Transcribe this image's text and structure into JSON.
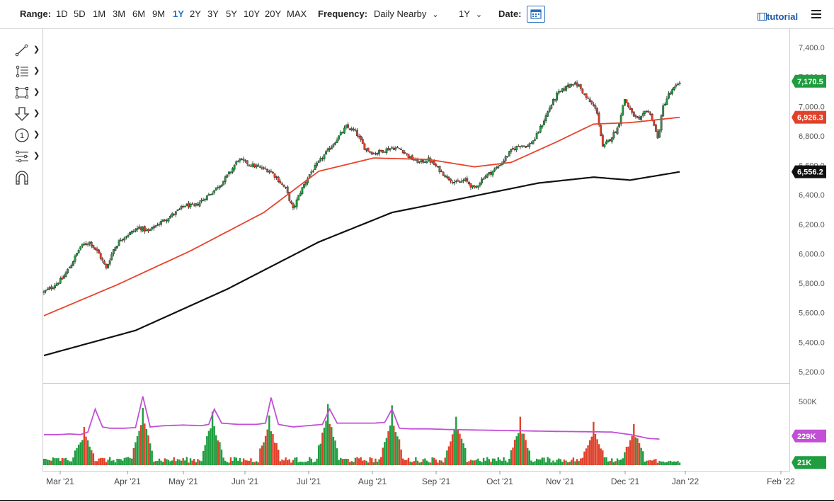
{
  "toolbar": {
    "range_label": "Range:",
    "ranges": [
      "1D",
      "5D",
      "1M",
      "3M",
      "6M",
      "9M",
      "1Y",
      "2Y",
      "3Y",
      "5Y",
      "10Y",
      "20Y",
      "MAX"
    ],
    "active_range": "1Y",
    "frequency_label": "Frequency:",
    "frequency_value": "Daily Nearby",
    "period_value": "1Y",
    "date_label": "Date:",
    "tutorial_label": "tutorial"
  },
  "drawing_tools": [
    "line-tool-icon",
    "text-list-tool-icon",
    "rectangle-tool-icon",
    "arrow-tool-icon",
    "number-marker-tool-icon",
    "fibonacci-tool-icon",
    "magnet-tool-icon"
  ],
  "colors": {
    "up": "#1f9d3f",
    "down": "#e0412a",
    "ma50": "#e8432b",
    "ma200": "#111111",
    "vol_avg": "#c24fd6",
    "badge_last": "#1f9d3f",
    "badge_ma50": "#e0412a",
    "badge_ma200": "#111111"
  },
  "chart_data": [
    {
      "type": "candlestick",
      "panel": "price",
      "x_axis_ticks": [
        "Mar '21",
        "Apr '21",
        "May '21",
        "Jun '21",
        "Jul '21",
        "Aug '21",
        "Sep '21",
        "Oct '21",
        "Nov '21",
        "Dec '21",
        "Jan '22",
        "Feb '22"
      ],
      "ylim": [
        5150,
        7450
      ],
      "y_ticks": [
        "7,400.0",
        "7,200.0",
        "7,000.0",
        "6,800.0",
        "6,600.0",
        "6,400.0",
        "6,200.0",
        "6,000.0",
        "5,800.0",
        "5,600.0",
        "5,400.0",
        "5,200.0"
      ],
      "y_tick_values": [
        7400,
        7200,
        7000,
        6800,
        6600,
        6400,
        6200,
        6000,
        5800,
        5600,
        5400,
        5200
      ],
      "close_path": [
        [
          0,
          5740
        ],
        [
          5,
          5780
        ],
        [
          10,
          5830
        ],
        [
          15,
          5930
        ],
        [
          20,
          6050
        ],
        [
          25,
          6080
        ],
        [
          30,
          6000
        ],
        [
          34,
          5900
        ],
        [
          38,
          6030
        ],
        [
          42,
          6100
        ],
        [
          47,
          6140
        ],
        [
          52,
          6180
        ],
        [
          57,
          6150
        ],
        [
          62,
          6200
        ],
        [
          67,
          6240
        ],
        [
          72,
          6280
        ],
        [
          77,
          6330
        ],
        [
          82,
          6320
        ],
        [
          87,
          6370
        ],
        [
          92,
          6420
        ],
        [
          97,
          6480
        ],
        [
          102,
          6560
        ],
        [
          106,
          6640
        ],
        [
          110,
          6620
        ],
        [
          114,
          6600
        ],
        [
          119,
          6580
        ],
        [
          124,
          6560
        ],
        [
          128,
          6500
        ],
        [
          132,
          6440
        ],
        [
          136,
          6300
        ],
        [
          140,
          6420
        ],
        [
          145,
          6540
        ],
        [
          150,
          6620
        ],
        [
          155,
          6700
        ],
        [
          160,
          6780
        ],
        [
          165,
          6860
        ],
        [
          170,
          6830
        ],
        [
          175,
          6720
        ],
        [
          180,
          6680
        ],
        [
          185,
          6700
        ],
        [
          190,
          6720
        ],
        [
          195,
          6710
        ],
        [
          200,
          6650
        ],
        [
          205,
          6620
        ],
        [
          210,
          6640
        ],
        [
          215,
          6580
        ],
        [
          220,
          6520
        ],
        [
          225,
          6480
        ],
        [
          230,
          6500
        ],
        [
          235,
          6440
        ],
        [
          240,
          6520
        ],
        [
          245,
          6560
        ],
        [
          250,
          6620
        ],
        [
          255,
          6700
        ],
        [
          260,
          6740
        ],
        [
          264,
          6730
        ],
        [
          268,
          6780
        ],
        [
          272,
          6880
        ],
        [
          276,
          6990
        ],
        [
          280,
          7080
        ],
        [
          284,
          7120
        ],
        [
          288,
          7160
        ],
        [
          292,
          7140
        ],
        [
          296,
          7060
        ],
        [
          300,
          7000
        ],
        [
          302,
          6960
        ],
        [
          305,
          6720
        ],
        [
          309,
          6780
        ],
        [
          313,
          6850
        ],
        [
          317,
          7050
        ],
        [
          321,
          6950
        ],
        [
          325,
          6900
        ],
        [
          329,
          6980
        ],
        [
          332,
          6920
        ],
        [
          335,
          6780
        ],
        [
          338,
          7000
        ],
        [
          341,
          7080
        ],
        [
          344,
          7120
        ],
        [
          347,
          7170
        ]
      ],
      "series": [
        {
          "name": "",
          "points": [
            [
              0,
              5580
            ],
            [
              40,
              5790
            ],
            [
              80,
              6020
            ],
            [
              120,
              6280
            ],
            [
              150,
              6560
            ],
            [
              180,
              6650
            ],
            [
              210,
              6640
            ],
            [
              235,
              6590
            ],
            [
              255,
              6620
            ],
            [
              280,
              6760
            ],
            [
              300,
              6880
            ],
            [
              320,
              6890
            ],
            [
              347,
              6926
            ]
          ]
        },
        {
          "name": "",
          "points": [
            [
              0,
              5310
            ],
            [
              50,
              5480
            ],
            [
              100,
              5760
            ],
            [
              150,
              6080
            ],
            [
              190,
              6280
            ],
            [
              230,
              6380
            ],
            [
              270,
              6480
            ],
            [
              300,
              6520
            ],
            [
              320,
              6500
            ],
            [
              347,
              6556
            ]
          ]
        }
      ],
      "price_badges": [
        "7,170.5",
        "6,926.3",
        "6,556.2"
      ],
      "price_badge_values": [
        7170.5,
        6926.3,
        6556.2
      ]
    },
    {
      "type": "bar",
      "panel": "volume",
      "ylim": [
        0,
        560
      ],
      "y_ticks": [
        "500K"
      ],
      "y_tick_values": [
        500
      ],
      "badges": [
        "229K",
        "21K"
      ],
      "badge_values": [
        229,
        21
      ],
      "spikes": [
        [
          22,
          300
        ],
        [
          54,
          450
        ],
        [
          92,
          420
        ],
        [
          123,
          390
        ],
        [
          155,
          480
        ],
        [
          190,
          470
        ],
        [
          225,
          380
        ],
        [
          260,
          380
        ],
        [
          300,
          340
        ],
        [
          322,
          380
        ]
      ],
      "average_path": [
        [
          0,
          240
        ],
        [
          8,
          240
        ],
        [
          14,
          245
        ],
        [
          20,
          240
        ],
        [
          24,
          260
        ],
        [
          28,
          440
        ],
        [
          32,
          300
        ],
        [
          36,
          290
        ],
        [
          44,
          290
        ],
        [
          50,
          295
        ],
        [
          54,
          540
        ],
        [
          58,
          300
        ],
        [
          66,
          310
        ],
        [
          76,
          315
        ],
        [
          86,
          310
        ],
        [
          90,
          320
        ],
        [
          93,
          440
        ],
        [
          97,
          330
        ],
        [
          106,
          320
        ],
        [
          116,
          320
        ],
        [
          121,
          330
        ],
        [
          124,
          530
        ],
        [
          128,
          320
        ],
        [
          136,
          300
        ],
        [
          144,
          310
        ],
        [
          152,
          320
        ],
        [
          156,
          440
        ],
        [
          160,
          330
        ],
        [
          170,
          330
        ],
        [
          180,
          330
        ],
        [
          186,
          335
        ],
        [
          190,
          440
        ],
        [
          194,
          290
        ],
        [
          200,
          285
        ],
        [
          210,
          285
        ],
        [
          220,
          280
        ],
        [
          240,
          275
        ],
        [
          260,
          270
        ],
        [
          280,
          265
        ],
        [
          300,
          262
        ],
        [
          310,
          260
        ],
        [
          320,
          240
        ],
        [
          330,
          210
        ],
        [
          336,
          205
        ]
      ]
    }
  ]
}
